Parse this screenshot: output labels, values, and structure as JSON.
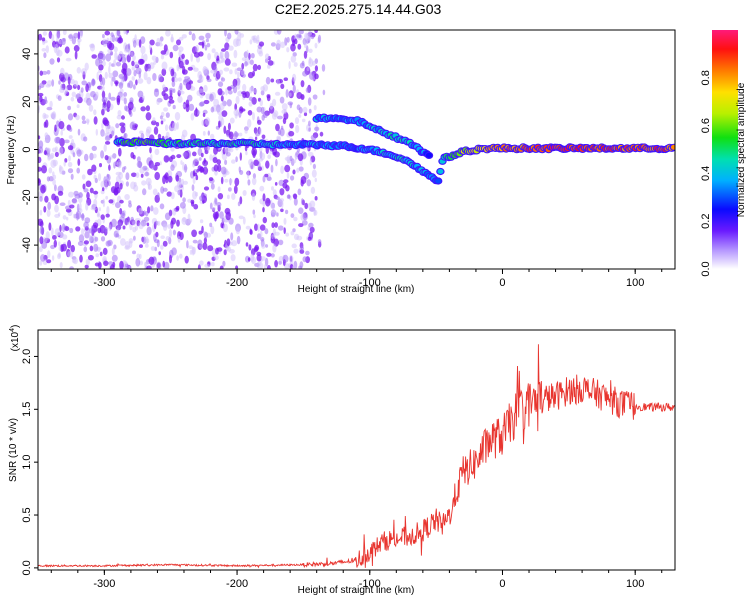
{
  "chart_data": [
    {
      "type": "heatmap",
      "title": "C2E2.2025.275.14.44.G03",
      "xlabel": "Height of straight line (km)",
      "ylabel": "Frequency (Hz)",
      "xlim": [
        -350,
        130
      ],
      "ylim": [
        -50,
        50
      ],
      "xticks": [
        "-300",
        "-200",
        "-100",
        "0",
        "100"
      ],
      "yticks": [
        "-40",
        "-20",
        "0",
        "20",
        "40"
      ],
      "colorbar": {
        "label": "Normalized spectral amplitude",
        "range": [
          0.0,
          1.0
        ],
        "ticks": [
          "0.0",
          "0.2",
          "0.4",
          "0.6",
          "0.8"
        ]
      },
      "noise_region_x": [
        -350,
        -140
      ],
      "main_track": {
        "x": [
          -290,
          -270,
          -250,
          -230,
          -210,
          -190,
          -170,
          -150,
          -140,
          -120,
          -100,
          -85,
          -75,
          -65,
          -58,
          -52,
          -48,
          -45,
          -40,
          -30,
          -20,
          -10,
          0,
          20,
          40,
          60,
          80,
          100,
          130
        ],
        "freq": [
          3,
          3,
          2.5,
          2.5,
          2.5,
          2.5,
          2,
          2,
          2,
          1.5,
          0,
          -2,
          -4,
          -7,
          -10,
          -12,
          -13,
          -4,
          -3,
          -1,
          0,
          0.5,
          0.5,
          0.5,
          0.5,
          0.5,
          0.5,
          0.5,
          0.5
        ],
        "amplitude": [
          0.5,
          0.55,
          0.5,
          0.5,
          0.45,
          0.45,
          0.4,
          0.35,
          0.35,
          0.3,
          0.35,
          0.4,
          0.45,
          0.4,
          0.35,
          0.35,
          0.3,
          0.45,
          0.55,
          0.65,
          0.7,
          0.75,
          0.8,
          0.85,
          0.9,
          0.9,
          0.85,
          0.85,
          0.85
        ]
      },
      "secondary_track": {
        "x": [
          -140,
          -130,
          -120,
          -110,
          -100,
          -90,
          -80,
          -70,
          -60,
          -55
        ],
        "freq": [
          13,
          13,
          12.5,
          12,
          10,
          7,
          5,
          3,
          -1,
          -3
        ],
        "amplitude": [
          0.35,
          0.35,
          0.35,
          0.35,
          0.35,
          0.4,
          0.45,
          0.4,
          0.35,
          0.3
        ]
      }
    },
    {
      "type": "line",
      "xlabel": "Height of straight line (km)",
      "ylabel": "SNR (10 * v/v)",
      "y_scale_label": "(x10",
      "y_scale_exponent": "4",
      "xlim": [
        -350,
        130
      ],
      "ylim": [
        -0.02,
        2.25
      ],
      "xticks": [
        "-300",
        "-200",
        "-100",
        "0",
        "100"
      ],
      "yticks": [
        "0.0",
        "0.5",
        "1.0",
        "1.5",
        "2.0"
      ],
      "series": [
        {
          "name": "SNR",
          "color": "#e8352f",
          "x": [
            -350,
            -300,
            -250,
            -200,
            -150,
            -130,
            -110,
            -100,
            -90,
            -80,
            -70,
            -60,
            -50,
            -45,
            -40,
            -30,
            -20,
            -10,
            0,
            10,
            20,
            30,
            40,
            50,
            60,
            70,
            80,
            90,
            100,
            110,
            130
          ],
          "values": [
            0.02,
            0.02,
            0.03,
            0.02,
            0.03,
            0.04,
            0.07,
            0.15,
            0.25,
            0.28,
            0.3,
            0.35,
            0.45,
            0.4,
            0.5,
            0.9,
            1.0,
            1.2,
            1.25,
            1.45,
            1.55,
            1.6,
            1.62,
            1.68,
            1.7,
            1.65,
            1.6,
            1.55,
            1.53,
            1.52,
            1.52
          ]
        }
      ]
    }
  ]
}
